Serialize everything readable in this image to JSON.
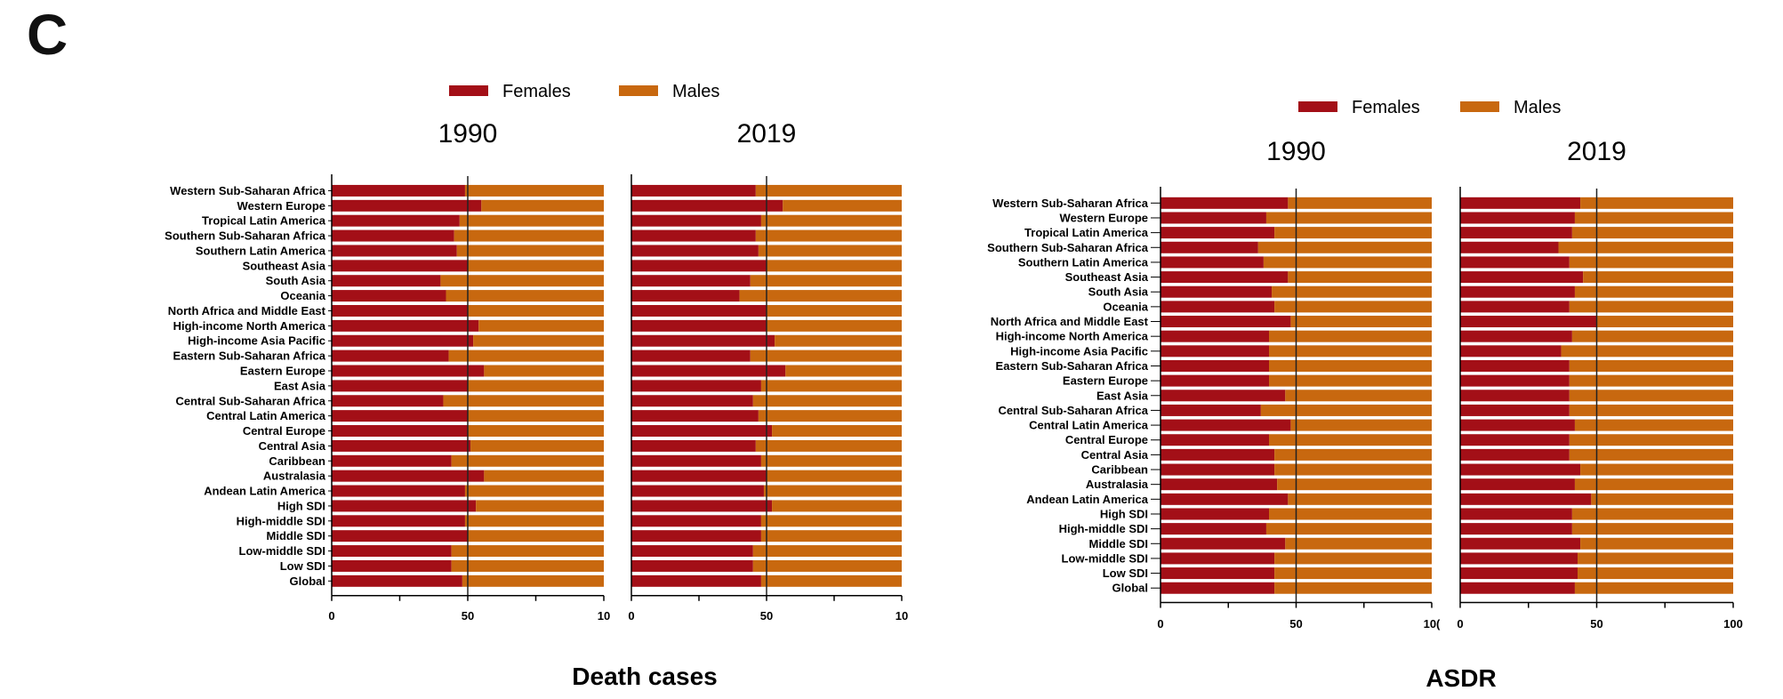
{
  "panel_label": "C",
  "colors": {
    "females": "#a30f17",
    "males": "#c8680f",
    "axis": "#000000"
  },
  "chart_data": [
    {
      "type": "bar",
      "orientation": "horizontal-stacked",
      "xlabel": "Death cases",
      "legend": [
        "Females",
        "Males"
      ],
      "xlim": [
        0,
        100
      ],
      "x_ticks": [
        "0",
        "50",
        "10"
      ],
      "reference_line": 50,
      "categories": [
        "Western Sub-Saharan Africa",
        "Western Europe",
        "Tropical Latin America",
        "Southern Sub-Saharan Africa",
        "Southern Latin America",
        "Southeast Asia",
        "South Asia",
        "Oceania",
        "North Africa and Middle East",
        "High-income North America",
        "High-income Asia Pacific",
        "Eastern Sub-Saharan Africa",
        "Eastern Europe",
        "East Asia",
        "Central Sub-Saharan Africa",
        "Central Latin America",
        "Central Europe",
        "Central Asia",
        "Caribbean",
        "Australasia",
        "Andean Latin America",
        "High SDI",
        "High-middle SDI",
        "Middle SDI",
        "Low-middle SDI",
        "Low SDI",
        "Global"
      ],
      "panels": [
        {
          "year": "1990",
          "series": [
            {
              "name": "Females",
              "values": [
                49,
                55,
                47,
                45,
                46,
                50,
                40,
                42,
                50,
                54,
                52,
                43,
                56,
                50,
                41,
                50,
                50,
                51,
                44,
                56,
                49,
                53,
                49,
                50,
                44,
                44,
                48
              ]
            },
            {
              "name": "Males",
              "values": [
                51,
                45,
                53,
                55,
                54,
                50,
                60,
                58,
                50,
                46,
                48,
                57,
                44,
                50,
                59,
                50,
                50,
                49,
                56,
                44,
                51,
                47,
                51,
                50,
                56,
                56,
                52
              ]
            }
          ]
        },
        {
          "year": "2019",
          "series": [
            {
              "name": "Females",
              "values": [
                46,
                56,
                48,
                46,
                47,
                50,
                44,
                40,
                50,
                50,
                53,
                44,
                57,
                48,
                45,
                47,
                52,
                46,
                48,
                50,
                49,
                52,
                48,
                48,
                45,
                45,
                48
              ]
            },
            {
              "name": "Males",
              "values": [
                54,
                44,
                52,
                54,
                53,
                50,
                56,
                60,
                50,
                50,
                47,
                56,
                43,
                52,
                55,
                53,
                48,
                54,
                52,
                50,
                51,
                48,
                52,
                52,
                55,
                55,
                52
              ]
            }
          ]
        }
      ]
    },
    {
      "type": "bar",
      "orientation": "horizontal-stacked",
      "xlabel": "ASDR",
      "legend": [
        "Females",
        "Males"
      ],
      "xlim": [
        0,
        100
      ],
      "x_ticks_left": [
        "0",
        "50",
        "10("
      ],
      "x_ticks_right": [
        "0",
        "50",
        "100"
      ],
      "reference_line": 50,
      "categories": [
        "Western Sub-Saharan Africa",
        "Western Europe",
        "Tropical Latin America",
        "Southern Sub-Saharan Africa",
        "Southern Latin America",
        "Southeast Asia",
        "South Asia",
        "Oceania",
        "North Africa and Middle East",
        "High-income North America",
        "High-income Asia Pacific",
        "Eastern Sub-Saharan Africa",
        "Eastern Europe",
        "East Asia",
        "Central Sub-Saharan Africa",
        "Central Latin America",
        "Central Europe",
        "Central Asia",
        "Caribbean",
        "Australasia",
        "Andean Latin America",
        "High SDI",
        "High-middle SDI",
        "Middle SDI",
        "Low-middle SDI",
        "Low SDI",
        "Global"
      ],
      "panels": [
        {
          "year": "1990",
          "series": [
            {
              "name": "Females",
              "values": [
                47,
                39,
                42,
                36,
                38,
                47,
                41,
                42,
                48,
                40,
                40,
                40,
                40,
                46,
                37,
                48,
                40,
                42,
                42,
                43,
                47,
                40,
                39,
                46,
                42,
                42,
                42
              ]
            },
            {
              "name": "Males",
              "values": [
                53,
                61,
                58,
                64,
                62,
                53,
                59,
                58,
                52,
                60,
                60,
                60,
                60,
                54,
                63,
                52,
                60,
                58,
                58,
                57,
                53,
                60,
                61,
                54,
                58,
                58,
                58
              ]
            }
          ]
        },
        {
          "year": "2019",
          "series": [
            {
              "name": "Females",
              "values": [
                44,
                42,
                41,
                36,
                40,
                45,
                42,
                40,
                50,
                41,
                37,
                40,
                40,
                40,
                40,
                42,
                40,
                40,
                44,
                42,
                48,
                41,
                41,
                44,
                43,
                43,
                42
              ]
            },
            {
              "name": "Males",
              "values": [
                56,
                58,
                59,
                64,
                60,
                55,
                58,
                60,
                50,
                59,
                63,
                60,
                60,
                60,
                60,
                58,
                60,
                60,
                56,
                58,
                52,
                59,
                59,
                56,
                57,
                57,
                58
              ]
            }
          ]
        }
      ]
    }
  ]
}
